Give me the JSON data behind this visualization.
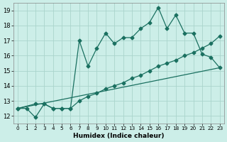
{
  "xlabel": "Humidex (Indice chaleur)",
  "background_color": "#cceee8",
  "grid_color": "#aad4cc",
  "line_color": "#1a7060",
  "xlim": [
    -0.5,
    23.5
  ],
  "ylim": [
    11.5,
    19.5
  ],
  "yticks": [
    12,
    13,
    14,
    15,
    16,
    17,
    18,
    19
  ],
  "xticks": [
    0,
    1,
    2,
    3,
    4,
    5,
    6,
    7,
    8,
    9,
    10,
    11,
    12,
    13,
    14,
    15,
    16,
    17,
    18,
    19,
    20,
    21,
    22,
    23
  ],
  "line1_x": [
    0,
    1,
    2,
    3,
    4,
    5,
    6,
    7,
    8,
    9,
    10,
    11,
    12,
    13,
    14,
    15,
    16,
    17,
    18,
    19,
    20,
    21,
    22,
    23
  ],
  "line1_y": [
    12.5,
    12.5,
    11.9,
    12.8,
    12.5,
    12.5,
    12.5,
    17.0,
    15.3,
    16.5,
    17.5,
    16.8,
    17.2,
    17.2,
    17.8,
    18.2,
    19.2,
    17.8,
    18.7,
    17.5,
    17.5,
    16.1,
    15.9,
    15.2
  ],
  "line2_x": [
    0,
    2,
    3,
    4,
    5,
    6,
    7,
    8,
    9,
    10,
    11,
    12,
    13,
    14,
    15,
    16,
    17,
    18,
    19,
    20,
    21,
    22,
    23
  ],
  "line2_y": [
    12.5,
    12.8,
    12.8,
    12.5,
    12.5,
    12.5,
    13.0,
    13.3,
    13.5,
    13.8,
    14.0,
    14.2,
    14.5,
    14.7,
    15.0,
    15.3,
    15.5,
    15.7,
    16.0,
    16.2,
    16.5,
    16.8,
    17.3
  ],
  "line3_x": [
    0,
    23
  ],
  "line3_y": [
    12.5,
    15.2
  ]
}
